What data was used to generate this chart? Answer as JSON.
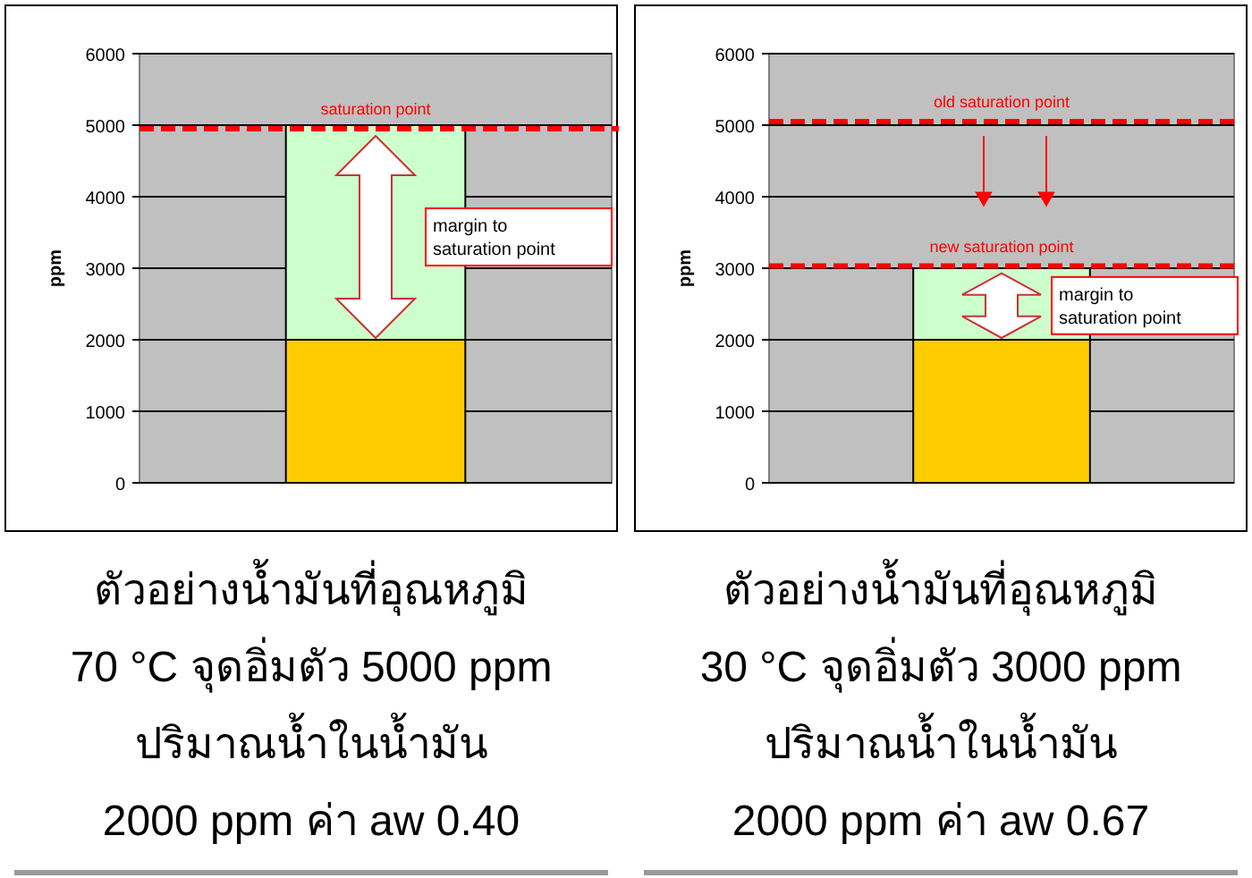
{
  "chart_data": [
    {
      "type": "bar",
      "stacked": true,
      "categories": [
        null
      ],
      "ylabel": "ppm",
      "ylim": [
        0,
        6000
      ],
      "yticks": [
        0,
        1000,
        2000,
        3000,
        4000,
        5000,
        6000
      ],
      "grid": "y",
      "series": [
        {
          "values": [
            2000
          ],
          "color": "#ffcc00"
        },
        {
          "values": [
            3000
          ],
          "color": "#ccffcc"
        }
      ],
      "ref_lines": [
        {
          "axis": "y",
          "value": 4950,
          "label": "saturation point",
          "color": "#ff0000",
          "line_style": "dashed"
        }
      ],
      "annotations": [
        "margin to\nsaturation point",
        "ตัวอย่างน้ำมันที่อุณหภูมิ\n70 °C จุดอิ่มตัว 5000 ppm\nปริมาณน้ำในน้ำมัน\n2000 ppm ค่า aw 0.40"
      ]
    },
    {
      "type": "bar",
      "stacked": true,
      "categories": [
        null
      ],
      "ylabel": "ppm",
      "ylim": [
        0,
        6000
      ],
      "yticks": [
        0,
        1000,
        2000,
        3000,
        4000,
        5000,
        6000
      ],
      "grid": "y",
      "series": [
        {
          "values": [
            2000
          ],
          "color": "#ffcc00"
        },
        {
          "values": [
            1000
          ],
          "color": "#ccffcc"
        }
      ],
      "ref_lines": [
        {
          "axis": "y",
          "value": 5050,
          "label": "old saturation point",
          "color": "#ff0000",
          "line_style": "dashed"
        },
        {
          "axis": "y",
          "value": 3030,
          "label": "new saturation point",
          "color": "#ff0000",
          "line_style": "dashed"
        }
      ],
      "annotations": [
        "margin to\nsaturation point",
        "ตัวอย่างน้ำมันที่อุณหภูมิ\n30 °C จุดอิ่มตัว 3000 ppm\nปริมาณน้ำในน้ำมัน\n2000 ppm ค่า aw 0.67"
      ]
    }
  ]
}
